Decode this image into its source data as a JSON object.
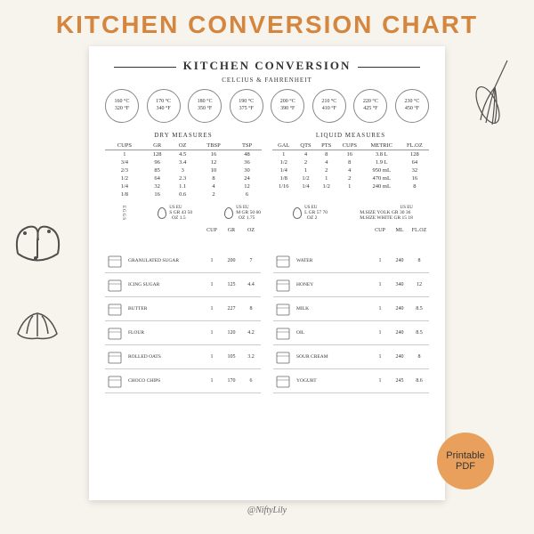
{
  "header": "KITCHEN CONVERSION CHART",
  "page_title": "KITCHEN CONVERSION",
  "temp_subtitle": "CELCIUS & FAHRENHEIT",
  "temps": [
    {
      "c": "160 °C",
      "f": "320 °F"
    },
    {
      "c": "170 °C",
      "f": "340 °F"
    },
    {
      "c": "180 °C",
      "f": "350 °F"
    },
    {
      "c": "190 °C",
      "f": "375 °F"
    },
    {
      "c": "200 °C",
      "f": "390 °F"
    },
    {
      "c": "210 °C",
      "f": "410 °F"
    },
    {
      "c": "220 °C",
      "f": "425 °F"
    },
    {
      "c": "230 °C",
      "f": "450 °F"
    }
  ],
  "dry": {
    "title": "DRY MEASURES",
    "cols": [
      "CUPS",
      "GR",
      "OZ",
      "TBSP",
      "TSP"
    ],
    "rows": [
      [
        "1",
        "128",
        "4.5",
        "16",
        "48"
      ],
      [
        "3/4",
        "96",
        "3.4",
        "12",
        "36"
      ],
      [
        "2/3",
        "85",
        "3",
        "10",
        "30"
      ],
      [
        "1/2",
        "64",
        "2.3",
        "8",
        "24"
      ],
      [
        "1/4",
        "32",
        "1.1",
        "4",
        "12"
      ],
      [
        "1/8",
        "16",
        "0.6",
        "2",
        "6"
      ]
    ]
  },
  "liquid": {
    "title": "LIQUID MEASURES",
    "cols": [
      "GAL",
      "QTS",
      "PTS",
      "CUPS",
      "METRIC",
      "FL.OZ"
    ],
    "rows": [
      [
        "1",
        "4",
        "8",
        "16",
        "3.8 L",
        "128"
      ],
      [
        "1/2",
        "2",
        "4",
        "8",
        "1.9 L",
        "64"
      ],
      [
        "1/4",
        "1",
        "2",
        "4",
        "950 mL",
        "32"
      ],
      [
        "1/8",
        "1/2",
        "1",
        "2",
        "470 mL",
        "16"
      ],
      [
        "1/16",
        "1/4",
        "1/2",
        "1",
        "240 mL",
        "8"
      ]
    ]
  },
  "eggs_label": "EGGS",
  "eggs": [
    {
      "size": "S",
      "us_gr": "43",
      "us_oz": "1.5",
      "eu": "50"
    },
    {
      "size": "M",
      "us_gr": "50",
      "us_oz": "1.75",
      "eu": "60"
    },
    {
      "size": "L",
      "us_gr": "57",
      "us_oz": "2",
      "eu": "70"
    }
  ],
  "egg_parts": [
    {
      "label": "M.SIZE YOLK",
      "gr": "30",
      "ml": "36"
    },
    {
      "label": "M.SIZE WHITE",
      "gr": "15",
      "ml": "18"
    }
  ],
  "ing_left": {
    "cols": [
      "CUP",
      "GR",
      "OZ"
    ],
    "rows": [
      {
        "name": "GRANULATED SUGAR",
        "v": [
          "1",
          "200",
          "7"
        ]
      },
      {
        "name": "ICING SUGAR",
        "v": [
          "1",
          "125",
          "4.4"
        ]
      },
      {
        "name": "BUTTER",
        "v": [
          "1",
          "227",
          "8"
        ]
      },
      {
        "name": "FLOUR",
        "v": [
          "1",
          "120",
          "4.2"
        ]
      },
      {
        "name": "ROLLED OATS",
        "v": [
          "1",
          "105",
          "3.2"
        ]
      },
      {
        "name": "CHOCO CHIPS",
        "v": [
          "1",
          "170",
          "6"
        ]
      }
    ]
  },
  "ing_right": {
    "cols": [
      "CUP",
      "ML",
      "FL.OZ"
    ],
    "rows": [
      {
        "name": "WATER",
        "v": [
          "1",
          "240",
          "8"
        ]
      },
      {
        "name": "HONEY",
        "v": [
          "1",
          "340",
          "12"
        ]
      },
      {
        "name": "MILK",
        "v": [
          "1",
          "240",
          "8.5"
        ]
      },
      {
        "name": "OIL",
        "v": [
          "1",
          "240",
          "8.5"
        ]
      },
      {
        "name": "SOUR CREAM",
        "v": [
          "1",
          "240",
          "8"
        ]
      },
      {
        "name": "YOGURT",
        "v": [
          "1",
          "245",
          "8.6"
        ]
      }
    ]
  },
  "footer": "@NiftyLily",
  "badge": {
    "l1": "Printable",
    "l2": "PDF"
  },
  "colors": {
    "accent": "#d4863f",
    "badge": "#e8a05c",
    "bg": "#f7f4ed"
  }
}
